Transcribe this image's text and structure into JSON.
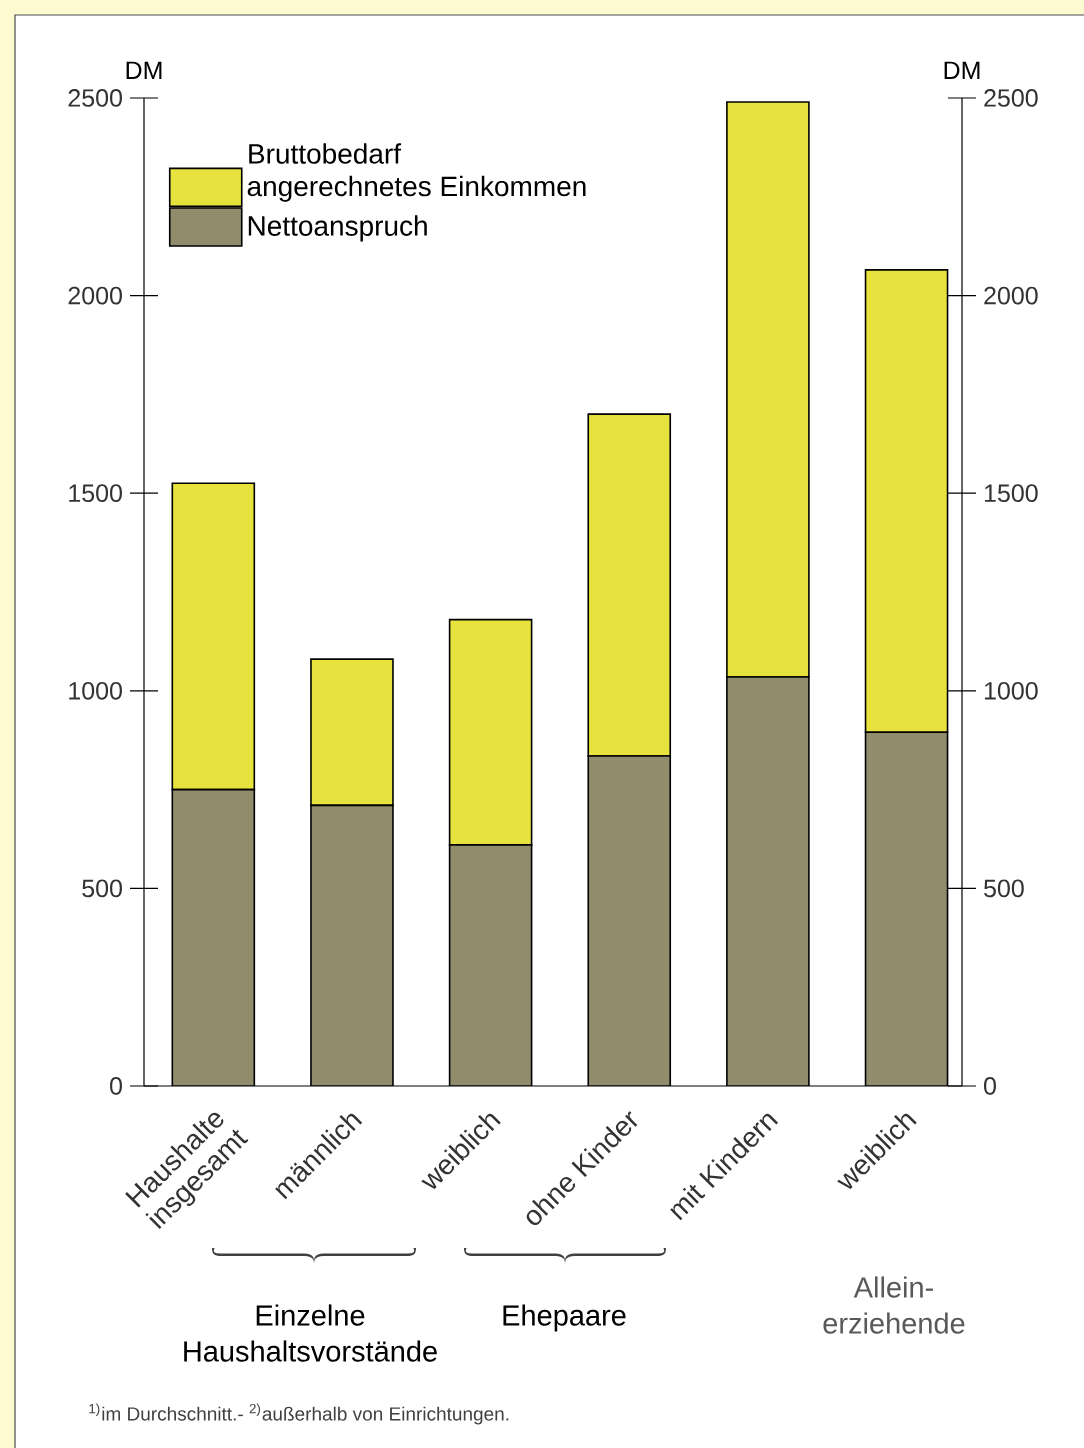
{
  "chart_data": {
    "type": "bar",
    "stacked": true,
    "categories": [
      "Haushalte insgesamt",
      "männlich",
      "weiblich",
      "ohne Kinder",
      "mit Kindern",
      "weiblich"
    ],
    "series": [
      {
        "name": "Nettoanspruch",
        "color": "#908c6c",
        "values": [
          750,
          710,
          610,
          835,
          1035,
          895
        ]
      },
      {
        "name": "angerechnetes Einkommen",
        "color": "#e8e23e",
        "values": [
          775,
          370,
          570,
          865,
          1455,
          1170
        ]
      }
    ],
    "legend_title": "Bruttobedarf",
    "legend": "top left",
    "ylabel": "DM",
    "y2label": "DM",
    "ylim": [
      0,
      2500
    ],
    "yticks": [
      0,
      500,
      1000,
      1500,
      2000,
      2500
    ],
    "y2lim": [
      0,
      2500
    ],
    "y2ticks": [
      0,
      500,
      1000,
      1500,
      2000,
      2500
    ],
    "annotations": [
      "Einzelne Haushaltsvorstände",
      "Ehepaare",
      "Allein-erziehende",
      "$^{1)}$im Durchschnitt.- $^{2)}$außerhalb von Einrichtungen."
    ]
  }
}
